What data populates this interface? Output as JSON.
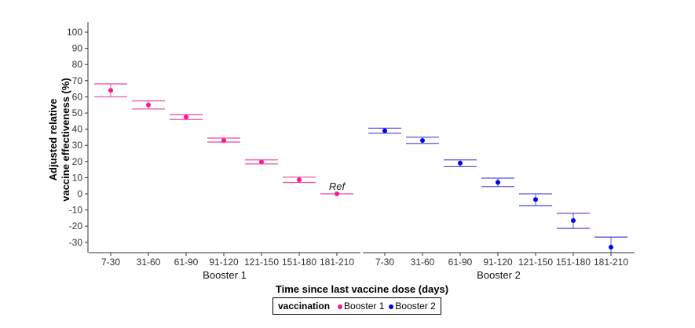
{
  "chart_data": {
    "type": "scatter",
    "subtype": "point-with-error-bars, faceted",
    "xlabel": "Time since last vaccine dose (days)",
    "ylabel": "Adjusted relative vaccine effectiveness (%)",
    "ylabel_lines": [
      "Adjusted relative",
      "vaccine effectiveness (%)"
    ],
    "ylim": [
      -33,
      105
    ],
    "yticks": [
      100,
      90,
      80,
      70,
      60,
      50,
      40,
      30,
      20,
      10,
      0,
      -10,
      -20,
      -30
    ],
    "categories": [
      "7-30",
      "31-60",
      "61-90",
      "91-120",
      "121-150",
      "151-180",
      "181-210"
    ],
    "reference_label": "Ref",
    "panels": [
      {
        "name": "Booster 1",
        "color": "#ff1493",
        "errcolor": "#e75aa8",
        "values": [
          64,
          55,
          47.5,
          33,
          19.7,
          8.7,
          0
        ],
        "lower": [
          60,
          52.5,
          46,
          32,
          18.5,
          7,
          0
        ],
        "upper": [
          68,
          57.5,
          49,
          34.5,
          21,
          10.3,
          0
        ]
      },
      {
        "name": "Booster 2",
        "color": "#0000ee",
        "errcolor": "#5555dd",
        "values": [
          39,
          33,
          19,
          7.1,
          -3.5,
          -16.5,
          -33
        ],
        "lower": [
          37.5,
          31.2,
          16.8,
          4.5,
          -7.3,
          -21.4,
          -40
        ],
        "upper": [
          40.6,
          35,
          21,
          9.7,
          0,
          -12,
          -26.8
        ]
      }
    ],
    "legend": {
      "title": "vaccination",
      "entries": [
        "Booster 1",
        "Booster 2"
      ],
      "placement": "bottom"
    },
    "grid": false
  }
}
